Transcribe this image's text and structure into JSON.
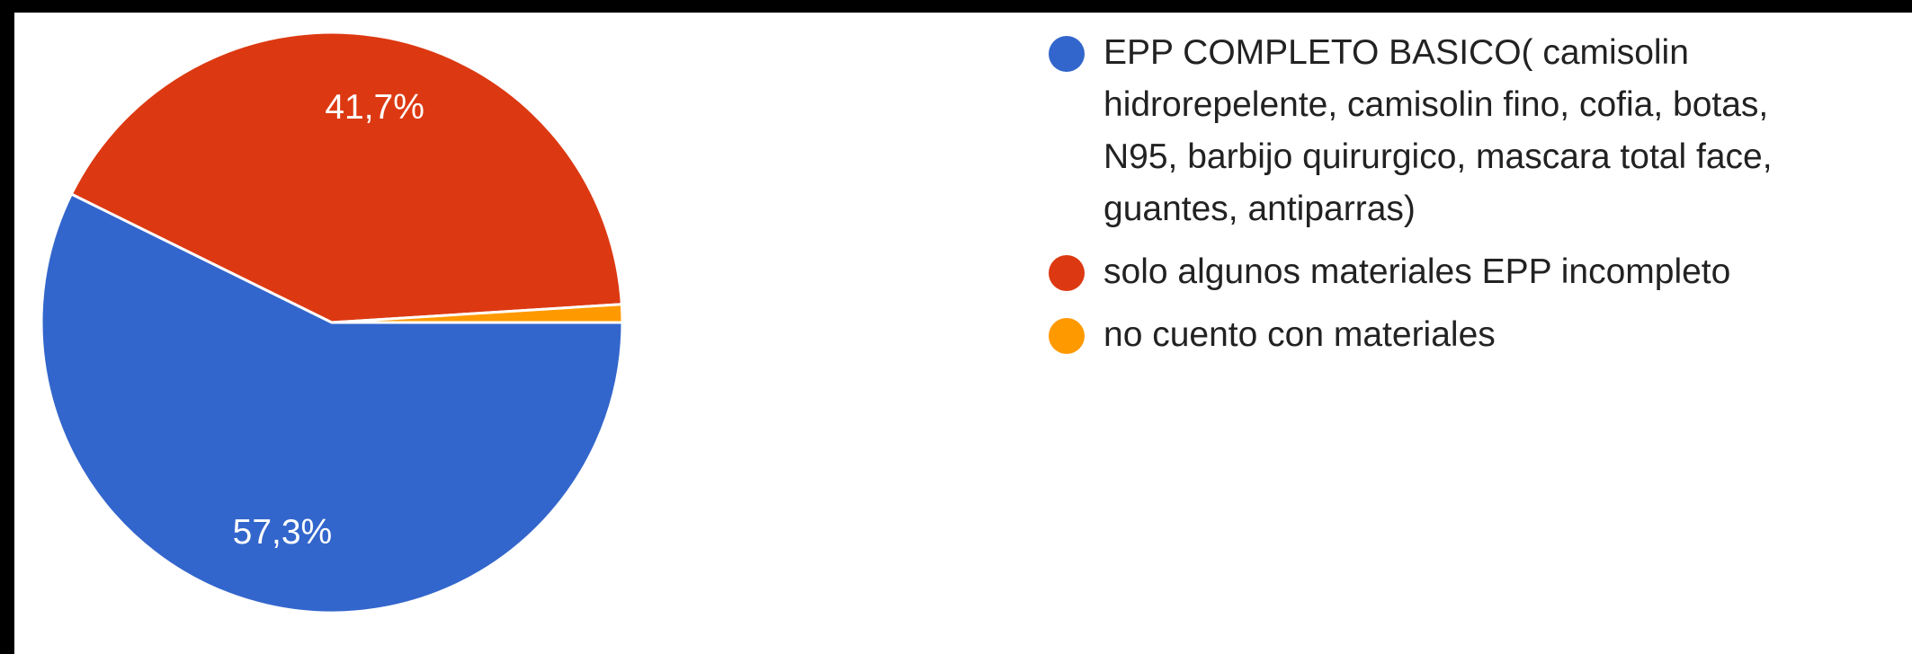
{
  "chart_data": {
    "type": "pie",
    "categories": [
      "EPP COMPLETO BASICO( camisolin hidrorepelente, camisolin fino, cofia, botas, N95, barbijo quirurgico, mascara total face, guantes, antiparras)",
      "solo algunos materiales EPP incompleto",
      "no cuento con materiales"
    ],
    "values": [
      57.3,
      41.7,
      1.0
    ],
    "value_labels": [
      "57,3%",
      "41,7%",
      null
    ],
    "colors": [
      "#3366cc",
      "#dc3912",
      "#ff9900"
    ],
    "legend": "right"
  }
}
